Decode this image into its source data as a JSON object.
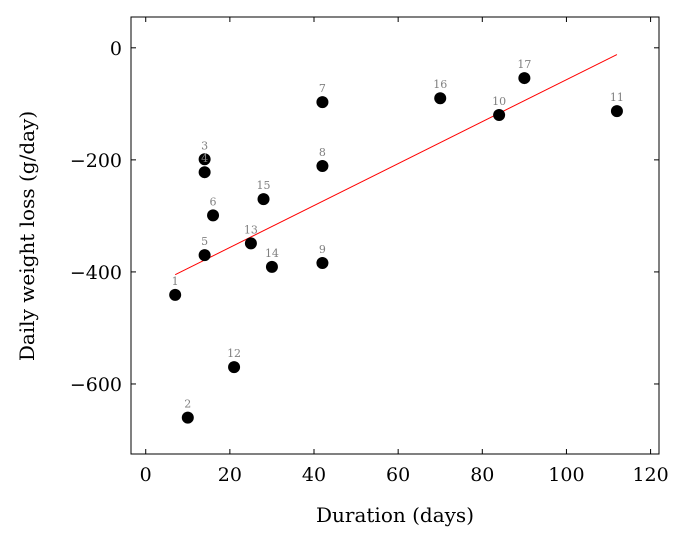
{
  "chart_data": {
    "type": "scatter",
    "xlabel": "Duration (days)",
    "ylabel": "Daily weight loss (g/day)",
    "xlim": [
      -3.5,
      122
    ],
    "ylim": [
      -725,
      55
    ],
    "xticks": [
      0,
      20,
      40,
      60,
      80,
      100,
      120
    ],
    "yticks": [
      0,
      -200,
      -400,
      -600
    ],
    "ytick_labels": [
      "0",
      "−200",
      "−400",
      "−600"
    ],
    "grid": false,
    "points": [
      {
        "label": "1",
        "x": 7,
        "y": -441
      },
      {
        "label": "2",
        "x": 10,
        "y": -660
      },
      {
        "label": "3",
        "x": 14,
        "y": -199
      },
      {
        "label": "4",
        "x": 14,
        "y": -222
      },
      {
        "label": "5",
        "x": 14,
        "y": -370
      },
      {
        "label": "6",
        "x": 16,
        "y": -299
      },
      {
        "label": "7",
        "x": 42,
        "y": -97
      },
      {
        "label": "8",
        "x": 42,
        "y": -211
      },
      {
        "label": "9",
        "x": 42,
        "y": -384
      },
      {
        "label": "10",
        "x": 84,
        "y": -120
      },
      {
        "label": "11",
        "x": 112,
        "y": -113
      },
      {
        "label": "12",
        "x": 21,
        "y": -570
      },
      {
        "label": "13",
        "x": 25,
        "y": -349
      },
      {
        "label": "14",
        "x": 30,
        "y": -391
      },
      {
        "label": "15",
        "x": 28,
        "y": -270
      },
      {
        "label": "16",
        "x": 70,
        "y": -90
      },
      {
        "label": "17",
        "x": 90,
        "y": -54
      }
    ],
    "trendline": {
      "x": [
        7,
        112
      ],
      "y": [
        -405,
        -12
      ],
      "color": "#ff0000"
    },
    "point_color": "#000000",
    "label_color": "#808080"
  }
}
